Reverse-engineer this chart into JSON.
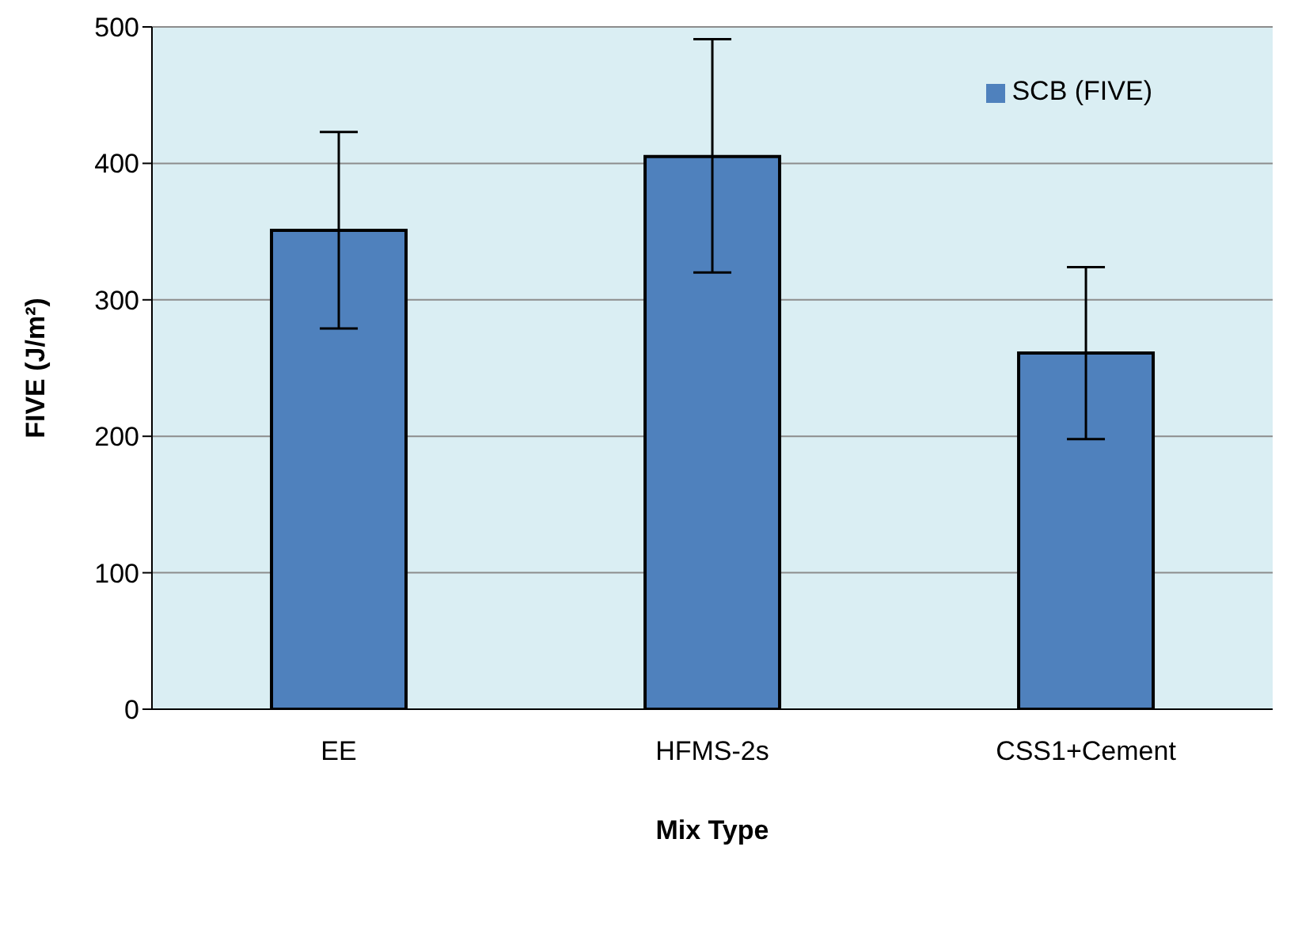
{
  "chart_data": {
    "type": "bar",
    "xlabel": "Mix Type",
    "ylabel": "FIVE (J/m²)",
    "categories": [
      "EE",
      "HFMS-2s",
      "CSS1+Cement"
    ],
    "series": [
      {
        "name": "SCB (FIVE)",
        "color": "#4f81bd",
        "values": [
          351,
          405,
          261
        ],
        "errors": [
          [
            279,
            423
          ],
          [
            320,
            491
          ],
          [
            198,
            324
          ]
        ]
      }
    ],
    "ylim": [
      0,
      500
    ],
    "yticks": [
      0,
      100,
      200,
      300,
      400,
      500
    ],
    "grid": "y",
    "legend": "top right"
  }
}
